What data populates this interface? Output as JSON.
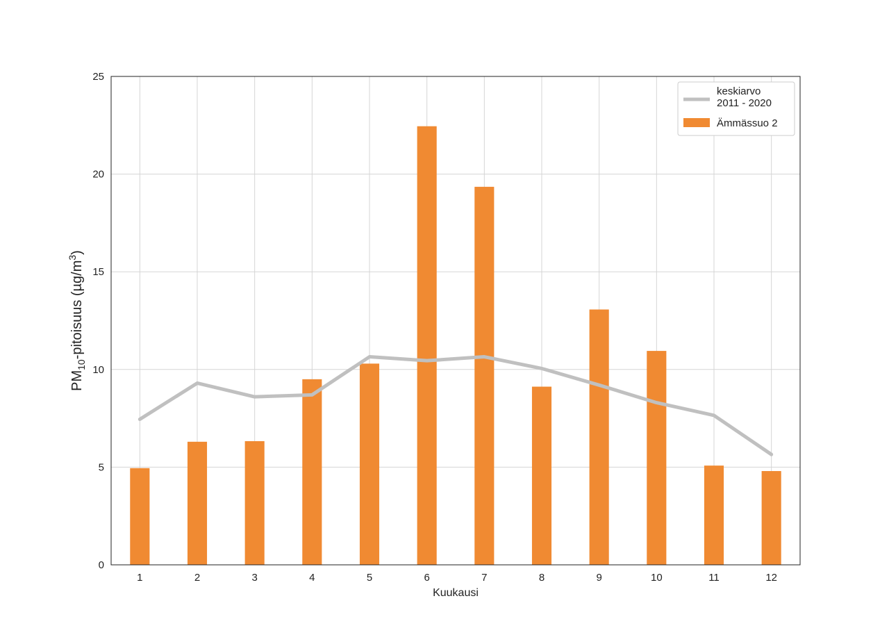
{
  "chart_data": {
    "type": "bar",
    "title": "",
    "xlabel": "Kuukausi",
    "ylabel": {
      "prefix": "PM",
      "subscript": "10",
      "middle": "-pitoisuus (µg/m",
      "superscript": "3",
      "suffix": ")"
    },
    "categories": [
      "1",
      "2",
      "3",
      "4",
      "5",
      "6",
      "7",
      "8",
      "9",
      "10",
      "11",
      "12"
    ],
    "ylim": [
      0,
      25
    ],
    "yticks": [
      "0",
      "5",
      "10",
      "15",
      "20",
      "25"
    ],
    "grid": true,
    "legend_position": "top-right",
    "series": [
      {
        "name": "Ämmässuo 2",
        "kind": "bar",
        "color": "#f08a32",
        "values": [
          4.95,
          6.3,
          6.33,
          9.5,
          10.3,
          22.45,
          19.35,
          9.12,
          13.07,
          10.95,
          5.08,
          4.8
        ]
      },
      {
        "name": "keskiarvo\n2011 - 2020",
        "kind": "line",
        "color": "#c0c0c0",
        "values": [
          7.45,
          9.3,
          8.6,
          8.7,
          10.65,
          10.45,
          10.65,
          10.05,
          9.2,
          8.3,
          7.65,
          5.65
        ]
      }
    ]
  }
}
